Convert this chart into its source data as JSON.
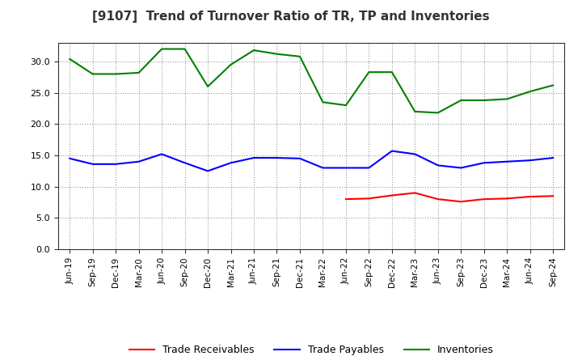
{
  "title": "[9107]  Trend of Turnover Ratio of TR, TP and Inventories",
  "labels": [
    "Jun-19",
    "Sep-19",
    "Dec-19",
    "Mar-20",
    "Jun-20",
    "Sep-20",
    "Dec-20",
    "Mar-21",
    "Jun-21",
    "Sep-21",
    "Dec-21",
    "Mar-22",
    "Jun-22",
    "Sep-22",
    "Dec-22",
    "Mar-23",
    "Jun-23",
    "Sep-23",
    "Dec-23",
    "Mar-24",
    "Jun-24",
    "Sep-24"
  ],
  "trade_receivables": [
    null,
    null,
    null,
    null,
    null,
    null,
    null,
    null,
    null,
    null,
    null,
    null,
    8.0,
    8.1,
    8.6,
    9.0,
    8.0,
    7.6,
    8.0,
    8.1,
    8.4,
    8.5
  ],
  "trade_payables": [
    14.5,
    13.6,
    13.6,
    14.0,
    15.2,
    13.8,
    12.5,
    13.8,
    14.6,
    14.6,
    14.5,
    13.0,
    13.0,
    13.0,
    15.7,
    15.2,
    13.4,
    13.0,
    13.8,
    14.0,
    14.2,
    14.6
  ],
  "inventories": [
    30.4,
    28.0,
    28.0,
    28.2,
    32.0,
    32.0,
    26.0,
    29.5,
    31.8,
    31.2,
    30.8,
    23.5,
    23.0,
    28.3,
    28.3,
    22.0,
    21.8,
    23.8,
    23.8,
    24.0,
    25.2,
    26.2
  ],
  "line_colors": {
    "trade_receivables": "#ff0000",
    "trade_payables": "#0000ff",
    "inventories": "#008000"
  },
  "ylim": [
    0.0,
    33.0
  ],
  "yticks": [
    0.0,
    5.0,
    10.0,
    15.0,
    20.0,
    25.0,
    30.0
  ],
  "background_color": "#ffffff",
  "grid_color": "#999999",
  "legend_labels": [
    "Trade Receivables",
    "Trade Payables",
    "Inventories"
  ]
}
